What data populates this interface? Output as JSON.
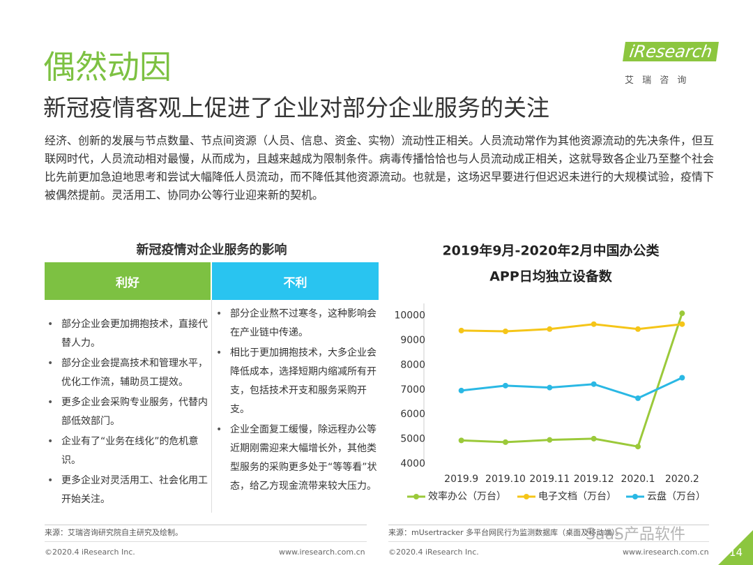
{
  "header": {
    "title": "偶然动因",
    "subtitle": "新冠疫情客观上促进了企业对部分企业服务的关注",
    "logo": "iResearch",
    "logo_sub": "艾 瑞 咨 询"
  },
  "intro": "经济、创新的发展与节点数量、节点间资源（人员、信息、资金、实物）流动性正相关。人员流动常作为其他资源流动的先决条件，但互联网时代，人员流动相对最慢，从而成为，且越来越成为限制条件。病毒传播恰恰也与人员流动成正相关，这就导致各企业乃至整个社会比先前更加急迫地思考和尝试大幅降低人员流动，而不降低其他资源流动。也就是，这场迟早要进行但迟迟未进行的大规模试验，疫情下被偶然提前。灵活用工、协同办公等行业迎来新的契机。",
  "table": {
    "title": "新冠疫情对企业服务的影响",
    "columns": [
      {
        "header": "利好",
        "items": [
          "部分企业会更加拥抱技术，直接代替人力。",
          "部分企业会提高技术和管理水平，优化工作流，辅助员工提效。",
          "更多企业会采购专业服务，代替内部低效部门。",
          "企业有了“业务在线化”的危机意识。",
          "更多企业对灵活用工、社会化用工开始关注。"
        ]
      },
      {
        "header": "不利",
        "items": [
          "部分企业熬不过寒冬，这种影响会在产业链中传递。",
          "相比于更加拥抱技术，大多企业会降低成本，选择短期内缩减所有开支，包括技术开支和服务采购开支。",
          "企业全面复工缓慢，除远程办公等近期刚需迎来大幅增长外，其他类型服务的采购更多处于“等等看”状态，给乙方现金流带来较大压力。"
        ]
      }
    ]
  },
  "chart_data": {
    "type": "line",
    "title": [
      "2019年9月-2020年2月中国办公类",
      "APP日均独立设备数"
    ],
    "categories": [
      "2019.9",
      "2019.10",
      "2019.11",
      "2019.12",
      "2020.1",
      "2020.2"
    ],
    "series": [
      {
        "name": "效率办公（万台）",
        "color": "#9bc93a",
        "values": [
          4950,
          4880,
          4970,
          5020,
          4700,
          10100
        ]
      },
      {
        "name": "电子文档（万台）",
        "color": "#f5c518",
        "values": [
          9400,
          9370,
          9460,
          9660,
          9460,
          9660
        ]
      },
      {
        "name": "云盘（万台）",
        "color": "#2ab8e4",
        "values": [
          6970,
          7170,
          7090,
          7230,
          6660,
          7490
        ]
      }
    ],
    "ylim": [
      4000,
      10500
    ],
    "yticks": [
      4000,
      5000,
      6000,
      7000,
      8000,
      9000,
      10000
    ],
    "grid": false
  },
  "footer": {
    "source_left": "来源：艾瑞咨询研究院自主研究及绘制。",
    "source_right": "来源：mUsertracker 多平台网民行为监测数据库（桌面及移动端）。",
    "copyright_left": "©2020.4 iResearch Inc.",
    "url_left": "www.iresearch.com.cn",
    "copyright_right": "©2020.4 iResearch Inc.",
    "url_right": "www.iresearch.com.cn",
    "watermark": "SaaS产品软件",
    "page": "14"
  }
}
